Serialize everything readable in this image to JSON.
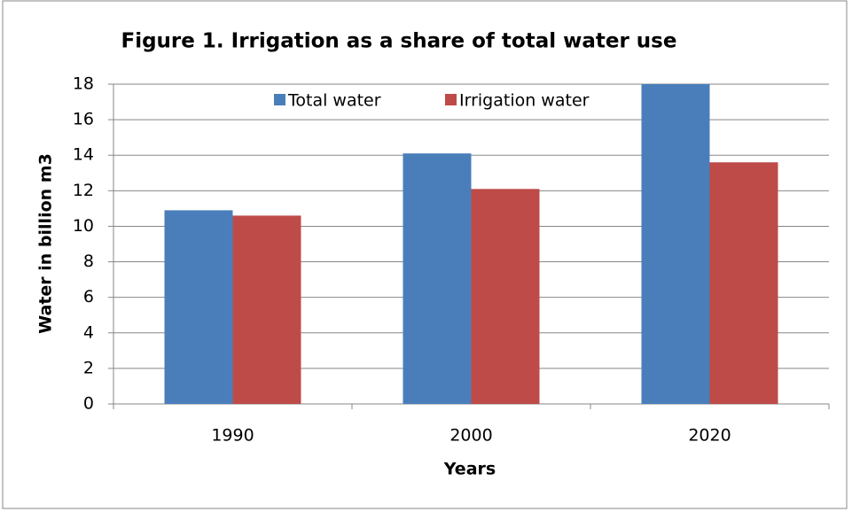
{
  "chart_data": {
    "type": "bar",
    "title": "Figure 1. Irrigation as a share of total water use",
    "x_label": "Years",
    "y_label": "Water in billion m3",
    "categories": [
      "1990",
      "2000",
      "2020"
    ],
    "series": [
      {
        "name": "Total water",
        "color": "#4a7ebb",
        "values": [
          10.9,
          14.1,
          18.0
        ]
      },
      {
        "name": "Irrigation water",
        "color": "#be4b48",
        "values": [
          10.6,
          12.1,
          13.6
        ]
      }
    ],
    "ylim": [
      0,
      18
    ],
    "yticks": [
      0,
      2,
      4,
      6,
      8,
      10,
      12,
      14,
      16,
      18
    ],
    "grid": true,
    "legend": "top"
  }
}
